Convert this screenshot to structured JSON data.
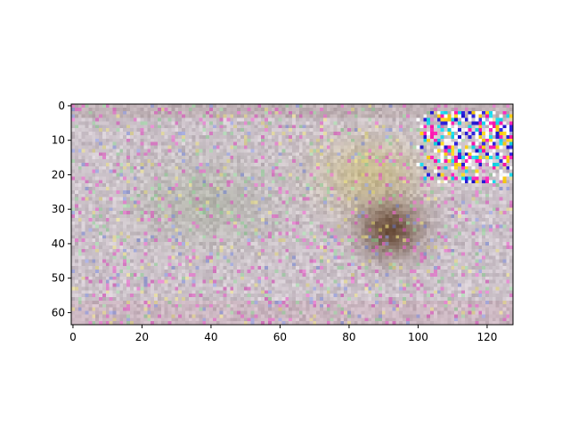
{
  "chart_data": {
    "type": "heatmap",
    "title": "",
    "xlabel": "",
    "ylabel": "",
    "image_width": 128,
    "image_height": 64,
    "xlim": [
      -0.5,
      127.5
    ],
    "ylim": [
      63.5,
      -0.5
    ],
    "x_ticks": [
      {
        "value": 0,
        "label": "0"
      },
      {
        "value": 20,
        "label": "20"
      },
      {
        "value": 40,
        "label": "40"
      },
      {
        "value": 60,
        "label": "60"
      },
      {
        "value": 80,
        "label": "80"
      },
      {
        "value": 100,
        "label": "100"
      },
      {
        "value": 120,
        "label": "120"
      }
    ],
    "y_ticks": [
      {
        "value": 0,
        "label": "0"
      },
      {
        "value": 10,
        "label": "10"
      },
      {
        "value": 20,
        "label": "20"
      },
      {
        "value": 30,
        "label": "30"
      },
      {
        "value": 40,
        "label": "40"
      },
      {
        "value": 50,
        "label": "50"
      },
      {
        "value": 60,
        "label": "60"
      }
    ],
    "grid": false,
    "legend": "none",
    "content": "noisy RGB image: mostly pale grey-lavender pixels, a dark brown-olive blob centred near x=92, y=36, a yellow-olive haze around x=85, y=20, and a band of saturated magenta / blue / yellow pixels in the top-right corner (x 100-127, y 3-22)",
    "palette": {
      "base_light": "#d8d0d6",
      "base_mid": "#c2b6bf",
      "green_haze": "#a4ad98",
      "yellow_haze": "#c8b86a",
      "dark_blob": "#5a3a22",
      "magenta": "#ff1fb4",
      "blue": "#2a1fd8",
      "cyan": "#18d6e8",
      "yellow": "#ffd21a"
    }
  }
}
